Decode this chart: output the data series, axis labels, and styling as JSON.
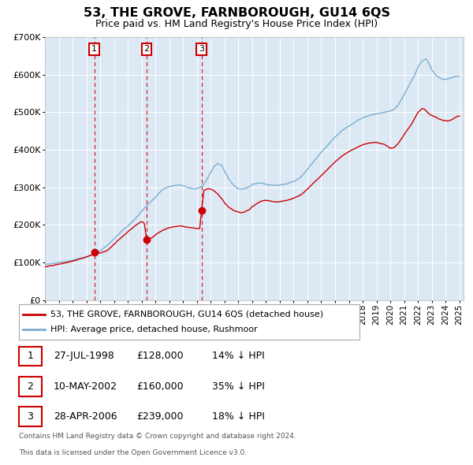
{
  "title": "53, THE GROVE, FARNBOROUGH, GU14 6QS",
  "subtitle": "Price paid vs. HM Land Registry's House Price Index (HPI)",
  "legend_red": "53, THE GROVE, FARNBOROUGH, GU14 6QS (detached house)",
  "legend_blue": "HPI: Average price, detached house, Rushmoor",
  "transactions": [
    {
      "num": 1,
      "date": "27-JUL-1998",
      "price": "£128,000",
      "hpi_diff": "14% ↓ HPI",
      "year_dec": 1998.57,
      "price_val": 128000
    },
    {
      "num": 2,
      "date": "10-MAY-2002",
      "price": "£160,000",
      "hpi_diff": "35% ↓ HPI",
      "year_dec": 2002.36,
      "price_val": 160000
    },
    {
      "num": 3,
      "date": "28-APR-2006",
      "price": "£239,000",
      "hpi_diff": "18% ↓ HPI",
      "year_dec": 2006.33,
      "price_val": 239000
    }
  ],
  "footnote_line1": "Contains HM Land Registry data © Crown copyright and database right 2024.",
  "footnote_line2": "This data is licensed under the Open Government Licence v3.0.",
  "ylim": [
    0,
    700000
  ],
  "yticks": [
    0,
    100000,
    200000,
    300000,
    400000,
    500000,
    600000,
    700000
  ],
  "plot_bg_color": "#dce9f5",
  "red_color": "#cc0000",
  "blue_color": "#7aadcf",
  "grid_color": "#ffffff",
  "year_start": 1995,
  "year_end": 2025
}
